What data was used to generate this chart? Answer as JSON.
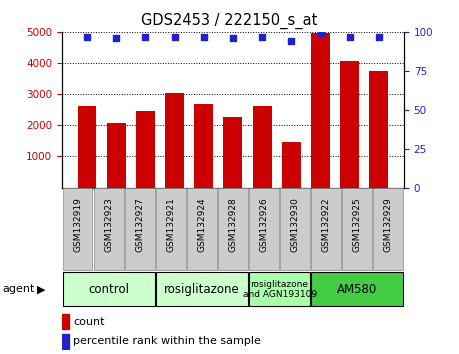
{
  "title": "GDS2453 / 222150_s_at",
  "samples": [
    "GSM132919",
    "GSM132923",
    "GSM132927",
    "GSM132921",
    "GSM132924",
    "GSM132928",
    "GSM132926",
    "GSM132930",
    "GSM132922",
    "GSM132925",
    "GSM132929"
  ],
  "counts": [
    2620,
    2080,
    2450,
    3050,
    2680,
    2260,
    2620,
    1450,
    4950,
    4080,
    3750
  ],
  "percentiles": [
    97,
    96,
    97,
    97,
    97,
    96,
    97,
    94,
    99,
    97,
    97
  ],
  "bar_color": "#cc0000",
  "dot_color": "#2222cc",
  "ylim_left": [
    0,
    5000
  ],
  "ylim_right": [
    0,
    100
  ],
  "yticks_left": [
    1000,
    2000,
    3000,
    4000,
    5000
  ],
  "yticks_right": [
    0,
    25,
    50,
    75,
    100
  ],
  "agent_groups": [
    {
      "label": "control",
      "start": 0,
      "end": 3,
      "color": "#ccffcc"
    },
    {
      "label": "rosiglitazone",
      "start": 3,
      "end": 6,
      "color": "#ccffcc"
    },
    {
      "label": "rosiglitazone\nand AGN193109",
      "start": 6,
      "end": 8,
      "color": "#aaffaa"
    },
    {
      "label": "AM580",
      "start": 8,
      "end": 11,
      "color": "#44cc44"
    }
  ],
  "tick_bg_color": "#cccccc",
  "legend_red_label": "count",
  "legend_blue_label": "percentile rank within the sample",
  "bg_color": "#ffffff"
}
